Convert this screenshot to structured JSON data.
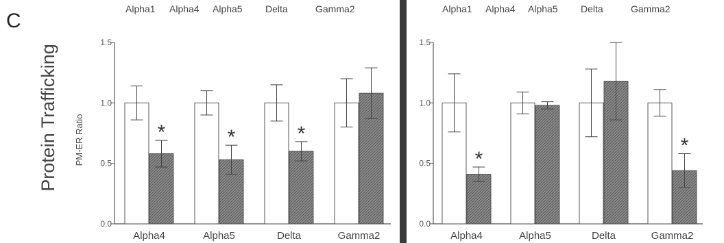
{
  "panel_letter": "C",
  "y_section_label": "Protein Trafficking",
  "colors": {
    "control": "#ffffff",
    "treated": "#8a8a8a",
    "axis": "#555555",
    "divider": "#3a3a3a"
  },
  "chart_data": [
    {
      "type": "bar",
      "header_labels": [
        "Alpha1",
        "Alpha4",
        "Alpha5",
        "Delta",
        "Gamma2"
      ],
      "ylabel": "PM-ER Ratio",
      "ylim": [
        0,
        1.5
      ],
      "yticks": [
        "0.0",
        "0.5",
        "1.0",
        "1.5"
      ],
      "categories": [
        "Alpha4",
        "Alpha5",
        "Delta",
        "Gamma2"
      ],
      "series": [
        {
          "values": [
            1.0,
            1.0,
            1.0,
            1.0
          ],
          "errors": [
            0.14,
            0.1,
            0.15,
            0.2
          ]
        },
        {
          "values": [
            0.58,
            0.53,
            0.6,
            1.08
          ],
          "errors": [
            0.11,
            0.12,
            0.08,
            0.21
          ]
        }
      ],
      "significance": [
        "*",
        "*",
        "*",
        ""
      ]
    },
    {
      "type": "bar",
      "header_labels": [
        "Alpha1",
        "Alpha4",
        "Alpha5",
        "Delta",
        "Gamma2"
      ],
      "ylabel": "",
      "ylim": [
        0,
        1.5
      ],
      "yticks": [
        "0.0",
        "0.5",
        "1.0",
        "1.5"
      ],
      "categories": [
        "Alpha4",
        "Alpha5",
        "Delta",
        "Gamma2"
      ],
      "series": [
        {
          "values": [
            1.0,
            1.0,
            1.0,
            1.0
          ],
          "errors": [
            0.24,
            0.09,
            0.28,
            0.11
          ]
        },
        {
          "values": [
            0.41,
            0.98,
            1.18,
            0.44
          ],
          "errors": [
            0.06,
            0.03,
            0.32,
            0.14
          ]
        }
      ],
      "significance": [
        "*",
        "",
        "",
        "*"
      ]
    }
  ]
}
